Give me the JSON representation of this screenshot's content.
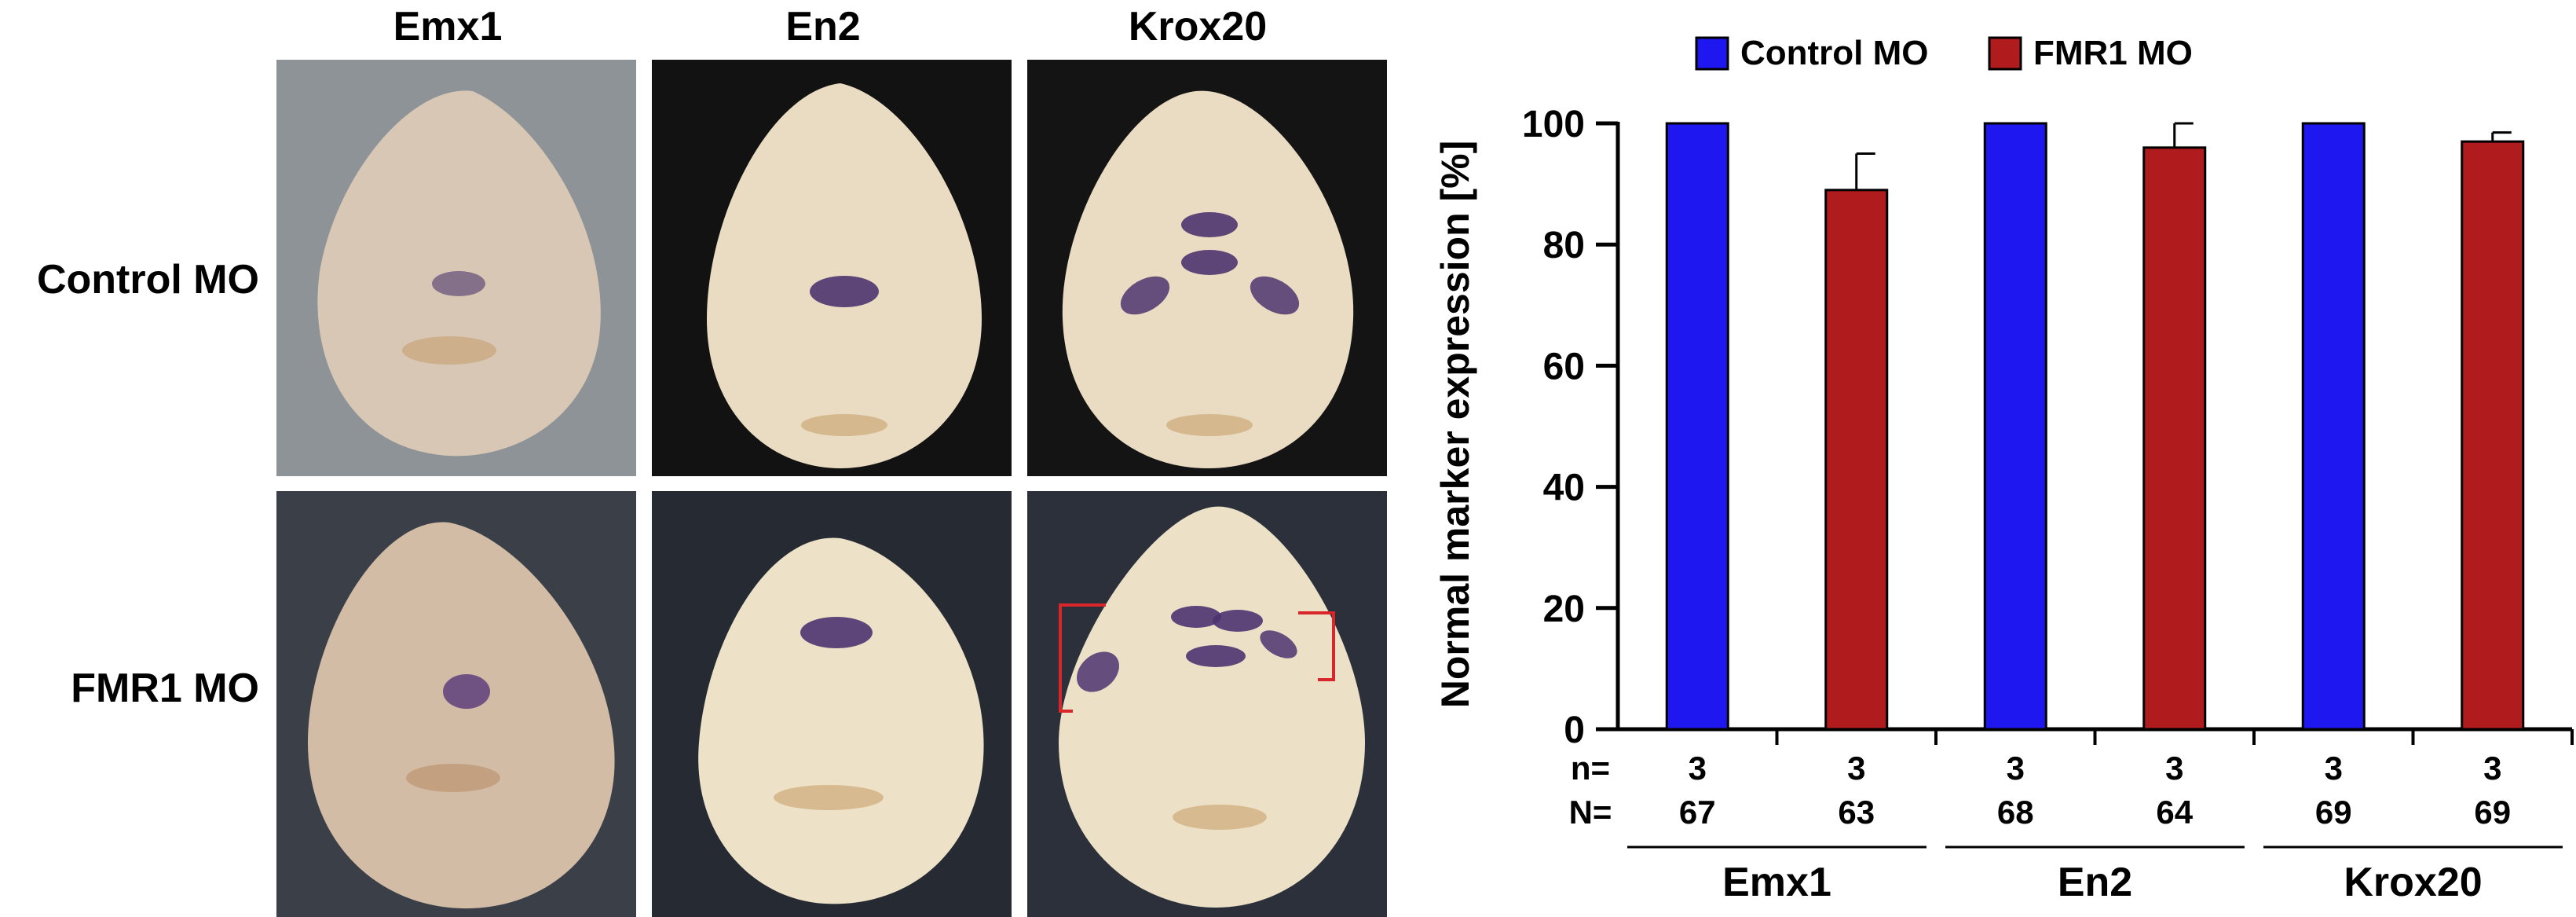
{
  "figure": {
    "column_headers": [
      "Emx1",
      "En2",
      "Krox20"
    ],
    "row_labels": [
      "Control MO",
      "FMR1 MO"
    ]
  },
  "panels": [
    {
      "row": "Control MO",
      "column": "Emx1",
      "background": "#8d9396"
    },
    {
      "row": "Control MO",
      "column": "En2",
      "background": "#121212"
    },
    {
      "row": "Control MO",
      "column": "Krox20",
      "background": "#141414"
    },
    {
      "row": "FMR1 MO",
      "column": "Emx1",
      "background": "#3a3f48"
    },
    {
      "row": "FMR1 MO",
      "column": "En2",
      "background": "#252a33"
    },
    {
      "row": "FMR1 MO",
      "column": "Krox20",
      "background": "#2b303a"
    }
  ],
  "colors": {
    "control": "#1f17f0",
    "fmr1": "#b01c1e",
    "embryo": "#e9dcc2",
    "stain": "#5a3f78",
    "bracket": "#d8262a"
  },
  "chart_data": {
    "type": "bar",
    "ylabel": "Normal marker expression [%]",
    "ylim": [
      0,
      100
    ],
    "yticks": [
      0,
      20,
      40,
      60,
      80,
      100
    ],
    "grid": false,
    "legend_position": "top",
    "groups": [
      "Emx1",
      "En2",
      "Krox20"
    ],
    "series": [
      {
        "name": "Control MO",
        "color": "#1f17f0",
        "values": [
          100,
          100,
          100
        ],
        "errors": [
          0,
          0,
          0
        ]
      },
      {
        "name": "FMR1 MO",
        "color": "#b01c1e",
        "values": [
          89,
          96,
          97
        ],
        "errors": [
          6,
          4,
          1.5
        ]
      }
    ],
    "counts_labels": {
      "n": "n=",
      "N": "N="
    },
    "counts": [
      {
        "n": "3",
        "N": "67"
      },
      {
        "n": "3",
        "N": "63"
      },
      {
        "n": "3",
        "N": "68"
      },
      {
        "n": "3",
        "N": "64"
      },
      {
        "n": "3",
        "N": "69"
      },
      {
        "n": "3",
        "N": "69"
      }
    ]
  }
}
